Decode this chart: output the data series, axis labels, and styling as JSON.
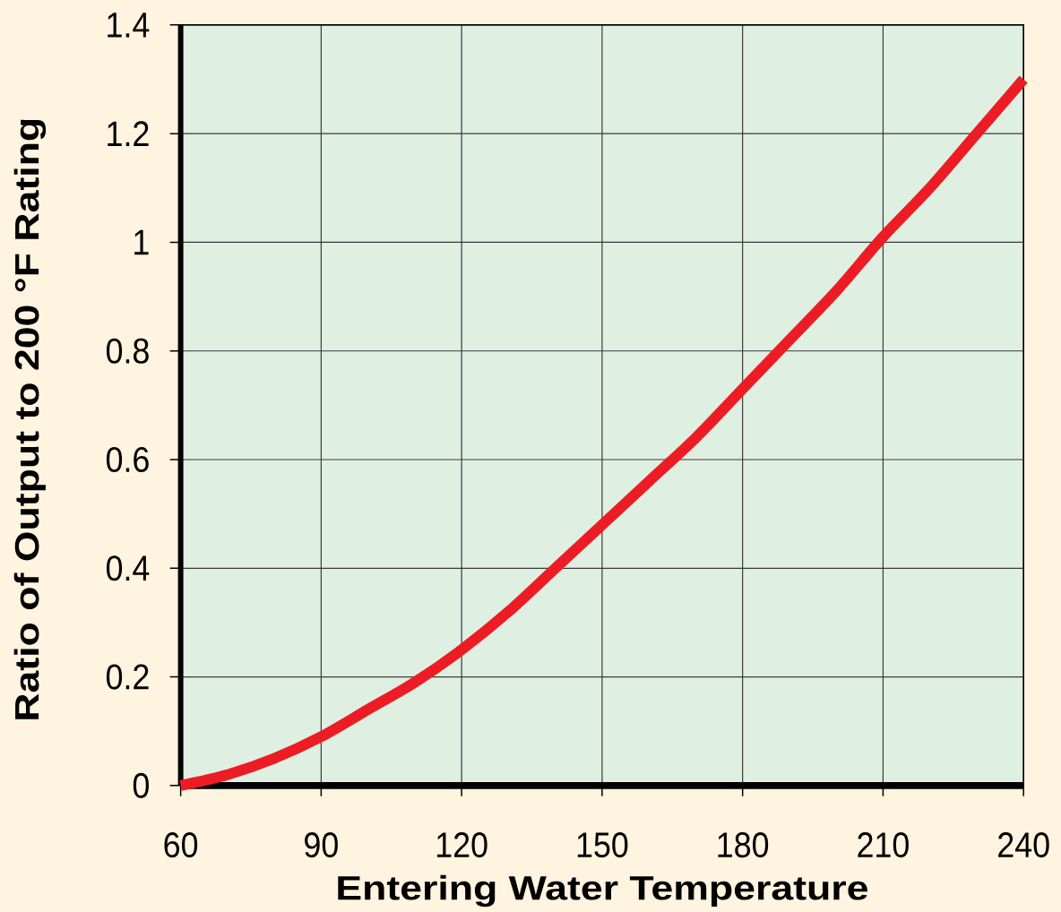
{
  "chart_data": {
    "type": "line",
    "xlabel": "Entering Water Temperature",
    "ylabel": "Ratio of Output to 200 °F Rating",
    "x": [
      60,
      70,
      80,
      90,
      100,
      110,
      120,
      130,
      140,
      150,
      160,
      170,
      180,
      190,
      200,
      210,
      220,
      230,
      240
    ],
    "series": [
      {
        "color": "#ed1c24",
        "values": [
          0,
          0.02,
          0.05,
          0.09,
          0.14,
          0.19,
          0.25,
          0.32,
          0.4,
          0.48,
          0.56,
          0.64,
          0.73,
          0.82,
          0.91,
          1.01,
          1.1,
          1.2,
          1.3
        ]
      }
    ],
    "xlim": [
      60,
      240
    ],
    "ylim": [
      0,
      1.4
    ],
    "xticks": [
      60,
      90,
      120,
      150,
      180,
      210,
      240
    ],
    "yticks": [
      0,
      0.2,
      0.4,
      0.6,
      0.8,
      1,
      1.2,
      1.4
    ],
    "grid": true,
    "line_style": "solid"
  }
}
